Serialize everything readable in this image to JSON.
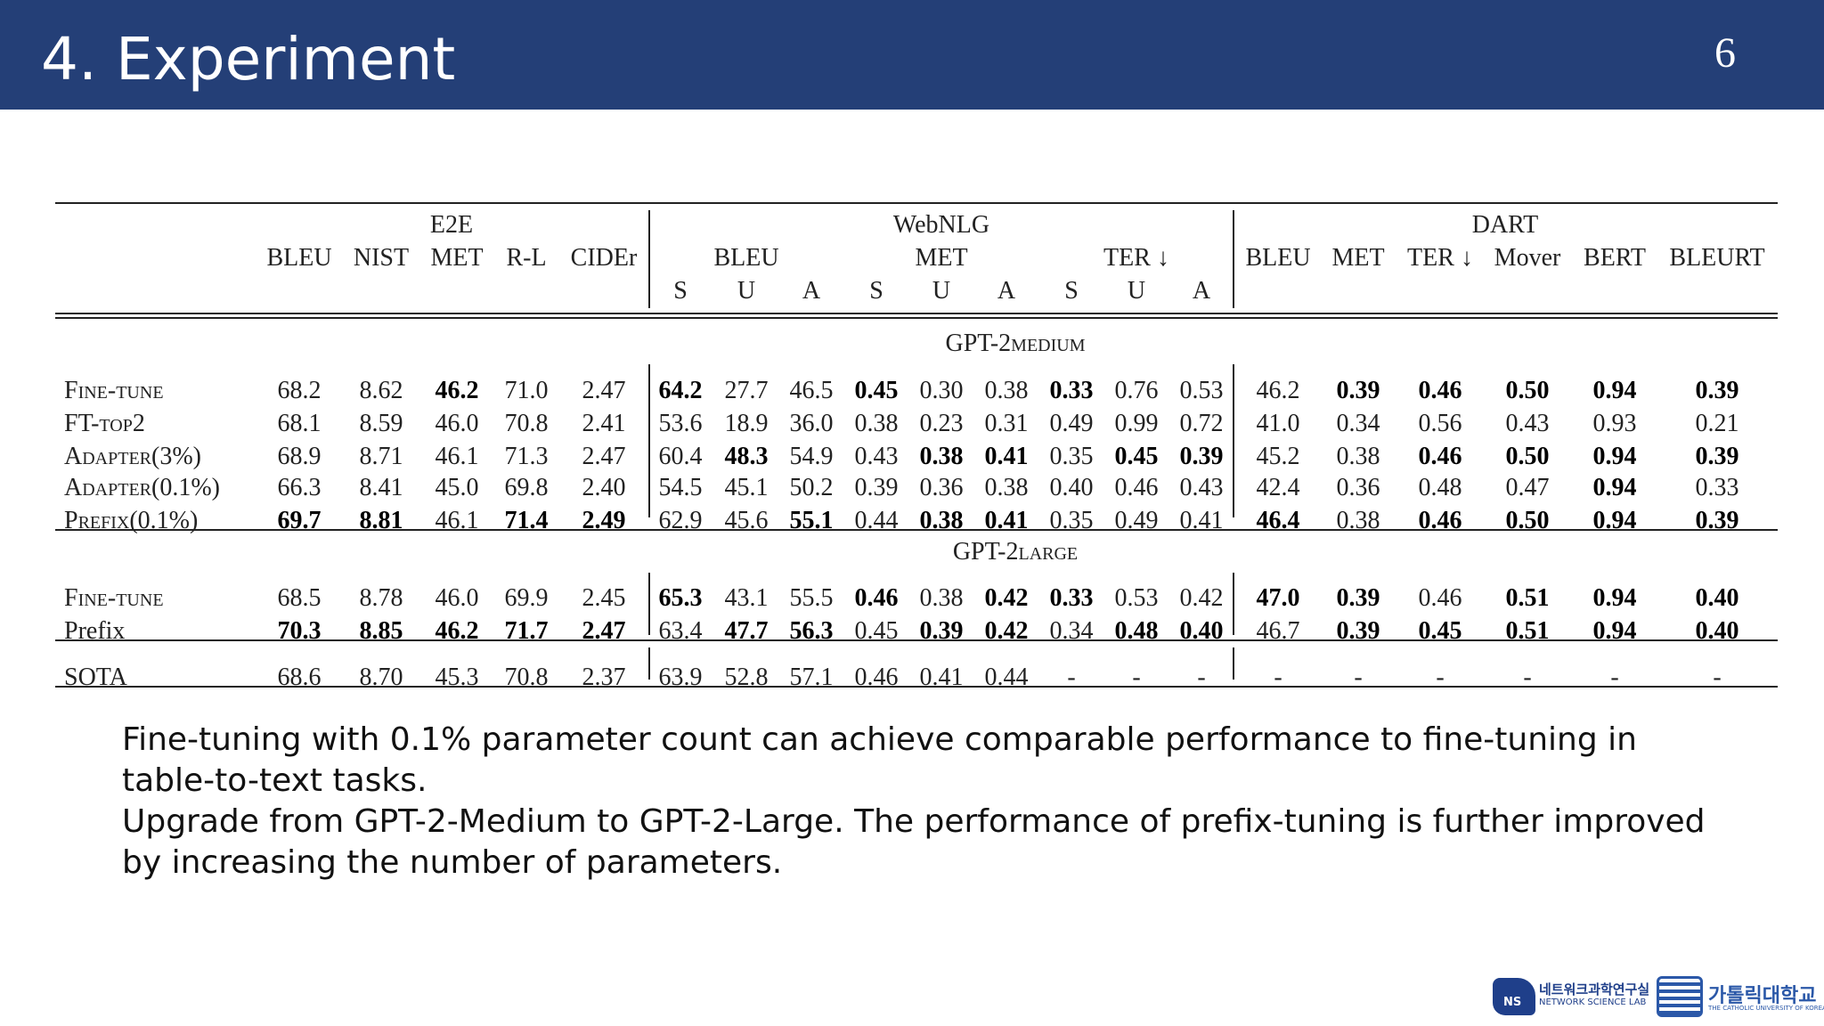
{
  "slide": {
    "title": "4. Experiment",
    "page_number": "6",
    "body_lines": [
      "Fine-tuning with 0.1% parameter count can achieve comparable performance to fine-tuning in table-to-text tasks.",
      "Upgrade from GPT-2-Medium to GPT-2-Large. The performance of prefix-tuning is further improved by increasing the number of parameters."
    ]
  },
  "table": {
    "group_headers": [
      "E2E",
      "WebNLG",
      "DART"
    ],
    "e2e_metrics": [
      "BLEU",
      "NIST",
      "MET",
      "R-L",
      "CIDEr"
    ],
    "webnlg_metrics": [
      "BLEU",
      "MET",
      "TER ↓"
    ],
    "webnlg_splits": [
      "S",
      "U",
      "A",
      "S",
      "U",
      "A",
      "S",
      "U",
      "A"
    ],
    "dart_metrics": [
      "BLEU",
      "MET",
      "TER ↓",
      "Mover",
      "BERT",
      "BLEURT"
    ],
    "section_medium": {
      "base": "GPT-2",
      "sub": "MEDIUM"
    },
    "section_large": {
      "base": "GPT-2",
      "sub": "LARGE"
    },
    "rows": [
      {
        "label": "Fine-tune",
        "smallcaps": true,
        "cells": [
          "68.2",
          "8.62",
          "46.2",
          "71.0",
          "2.47",
          "64.2",
          "27.7",
          "46.5",
          "0.45",
          "0.30",
          "0.38",
          "0.33",
          "0.76",
          "0.53",
          "46.2",
          "0.39",
          "0.46",
          "0.50",
          "0.94",
          "0.39"
        ],
        "bold": [
          false,
          false,
          true,
          false,
          false,
          true,
          false,
          false,
          true,
          false,
          false,
          true,
          false,
          false,
          false,
          true,
          true,
          true,
          true,
          true
        ]
      },
      {
        "label": "FT-top2",
        "smallcaps": true,
        "cells": [
          "68.1",
          "8.59",
          "46.0",
          "70.8",
          "2.41",
          "53.6",
          "18.9",
          "36.0",
          "0.38",
          "0.23",
          "0.31",
          "0.49",
          "0.99",
          "0.72",
          "41.0",
          "0.34",
          "0.56",
          "0.43",
          "0.93",
          "0.21"
        ],
        "bold": [
          false,
          false,
          false,
          false,
          false,
          false,
          false,
          false,
          false,
          false,
          false,
          false,
          false,
          false,
          false,
          false,
          false,
          false,
          false,
          false
        ]
      },
      {
        "label": "Adapter(3%)",
        "smallcaps": true,
        "cells": [
          "68.9",
          "8.71",
          "46.1",
          "71.3",
          "2.47",
          "60.4",
          "48.3",
          "54.9",
          "0.43",
          "0.38",
          "0.41",
          "0.35",
          "0.45",
          "0.39",
          "45.2",
          "0.38",
          "0.46",
          "0.50",
          "0.94",
          "0.39"
        ],
        "bold": [
          false,
          false,
          false,
          false,
          false,
          false,
          true,
          false,
          false,
          true,
          true,
          false,
          true,
          true,
          false,
          false,
          true,
          true,
          true,
          true
        ]
      },
      {
        "label": "Adapter(0.1%)",
        "smallcaps": true,
        "cells": [
          "66.3",
          "8.41",
          "45.0",
          "69.8",
          "2.40",
          "54.5",
          "45.1",
          "50.2",
          "0.39",
          "0.36",
          "0.38",
          "0.40",
          "0.46",
          "0.43",
          "42.4",
          "0.36",
          "0.48",
          "0.47",
          "0.94",
          "0.33"
        ],
        "bold": [
          false,
          false,
          false,
          false,
          false,
          false,
          false,
          false,
          false,
          false,
          false,
          false,
          false,
          false,
          false,
          false,
          false,
          false,
          true,
          false
        ]
      },
      {
        "label": "Prefix(0.1%)",
        "smallcaps": true,
        "cells": [
          "69.7",
          "8.81",
          "46.1",
          "71.4",
          "2.49",
          "62.9",
          "45.6",
          "55.1",
          "0.44",
          "0.38",
          "0.41",
          "0.35",
          "0.49",
          "0.41",
          "46.4",
          "0.38",
          "0.46",
          "0.50",
          "0.94",
          "0.39"
        ],
        "bold": [
          true,
          true,
          false,
          true,
          true,
          false,
          false,
          true,
          false,
          true,
          true,
          false,
          false,
          false,
          true,
          false,
          true,
          true,
          true,
          true
        ]
      },
      {
        "label": "Fine-tune",
        "smallcaps": true,
        "cells": [
          "68.5",
          "8.78",
          "46.0",
          "69.9",
          "2.45",
          "65.3",
          "43.1",
          "55.5",
          "0.46",
          "0.38",
          "0.42",
          "0.33",
          "0.53",
          "0.42",
          "47.0",
          "0.39",
          "0.46",
          "0.51",
          "0.94",
          "0.40"
        ],
        "bold": [
          false,
          false,
          false,
          false,
          false,
          true,
          false,
          false,
          true,
          false,
          true,
          true,
          false,
          false,
          true,
          true,
          false,
          true,
          true,
          true
        ]
      },
      {
        "label": "Prefix",
        "smallcaps": false,
        "cells": [
          "70.3",
          "8.85",
          "46.2",
          "71.7",
          "2.47",
          "63.4",
          "47.7",
          "56.3",
          "0.45",
          "0.39",
          "0.42",
          "0.34",
          "0.48",
          "0.40",
          "46.7",
          "0.39",
          "0.45",
          "0.51",
          "0.94",
          "0.40"
        ],
        "bold": [
          true,
          true,
          true,
          true,
          true,
          false,
          true,
          true,
          false,
          true,
          true,
          false,
          true,
          true,
          false,
          true,
          true,
          true,
          true,
          true
        ]
      },
      {
        "label": "SOTA",
        "smallcaps": false,
        "cells": [
          "68.6",
          "8.70",
          "45.3",
          "70.8",
          "2.37",
          "63.9",
          "52.8",
          "57.1",
          "0.46",
          "0.41",
          "0.44",
          "-",
          "-",
          "-",
          "-",
          "-",
          "-",
          "-",
          "-",
          "-"
        ],
        "bold": [
          false,
          false,
          false,
          false,
          false,
          false,
          false,
          false,
          false,
          false,
          false,
          false,
          false,
          false,
          false,
          false,
          false,
          false,
          false,
          false
        ]
      }
    ]
  },
  "logos": {
    "lab_mark": "NS",
    "lab_name_ko": "네트워크과학연구실",
    "lab_name_en": "NETWORK SCIENCE LAB",
    "univ_name_ko": "가톨릭대학교",
    "univ_name_en": "THE CATHOLIC UNIVERSITY OF KOREA"
  }
}
